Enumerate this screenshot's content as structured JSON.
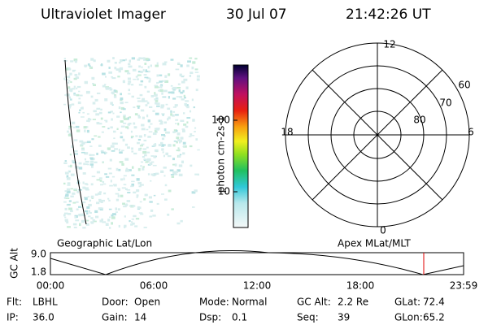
{
  "header": {
    "title": "Ultraviolet Imager",
    "date": "30 Jul 07",
    "time": "21:42:26 UT"
  },
  "colorbar": {
    "label": "photon cm-2s-1",
    "ticks": [
      "100",
      "10"
    ]
  },
  "polar": {
    "hour_labels": [
      "12",
      "6",
      "0",
      "18"
    ],
    "lat_labels": [
      "60",
      "70",
      "80"
    ]
  },
  "altitude_plot": {
    "y_label": "GC Alt",
    "y_ticks": [
      "9.0",
      "1.8"
    ],
    "left_caption": "Geographic Lat/Lon",
    "right_caption": "Apex MLat/MLT",
    "x_ticks": [
      "00:00",
      "06:00",
      "12:00",
      "18:00",
      "23:59"
    ]
  },
  "info": {
    "rows": [
      [
        {
          "label": "Flt:",
          "value": "LBHL"
        },
        {
          "label": "Door:",
          "value": "Open"
        },
        {
          "label": "Mode:",
          "value": "Normal"
        },
        {
          "label": "GC Alt:",
          "value": "2.2 Re"
        },
        {
          "label": "GLat:",
          "value": "72.4"
        }
      ],
      [
        {
          "label": "IP:",
          "value": "36.0"
        },
        {
          "label": "Gain:",
          "value": "14"
        },
        {
          "label": "Dsp:",
          "value": "0.1"
        },
        {
          "label": "Seq:",
          "value": "39"
        },
        {
          "label": "GLon:",
          "value": "65.2"
        }
      ]
    ]
  }
}
